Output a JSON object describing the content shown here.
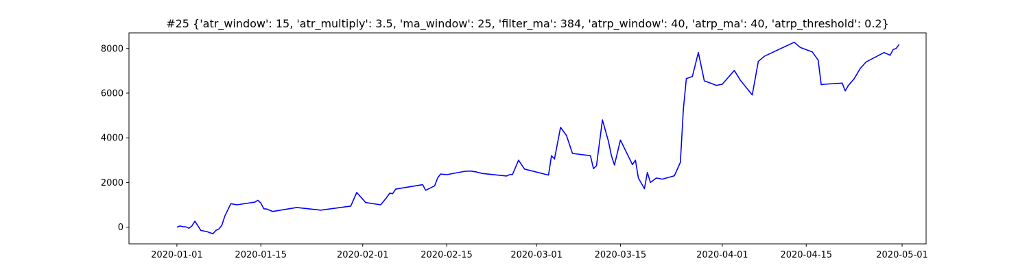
{
  "chart_data": {
    "type": "line",
    "title": "#25 {'atr_window': 15, 'atr_multiply': 3.5, 'ma_window': 25, 'filter_ma': 384, 'atrp_window': 40, 'atrp_ma': 40, 'atrp_threshold': 0.2}",
    "xlabel": "",
    "ylabel": "",
    "xlim": [
      "2019-12-24",
      "2020-05-05"
    ],
    "ylim": [
      -750,
      8700
    ],
    "x_ticks": [
      "2020-01-01",
      "2020-01-15",
      "2020-02-01",
      "2020-02-15",
      "2020-03-01",
      "2020-03-15",
      "2020-04-01",
      "2020-04-15",
      "2020-05-01"
    ],
    "y_ticks": [
      0,
      2000,
      4000,
      6000,
      8000
    ],
    "grid": false,
    "line_color": "#0000ff",
    "series": [
      {
        "x": [
          "2020-01-01",
          "2020-01-01T12",
          "2020-01-02",
          "2020-01-02T12",
          "2020-01-03",
          "2020-01-03T12",
          "2020-01-04",
          "2020-01-05",
          "2020-01-06",
          "2020-01-07",
          "2020-01-07T12",
          "2020-01-08",
          "2020-01-08T12",
          "2020-01-09",
          "2020-01-10",
          "2020-01-11",
          "2020-01-14",
          "2020-01-14T12",
          "2020-01-15",
          "2020-01-15T12",
          "2020-01-16",
          "2020-01-17",
          "2020-01-21",
          "2020-01-25",
          "2020-01-30",
          "2020-01-31",
          "2020-02-01",
          "2020-02-01T12",
          "2020-02-04",
          "2020-02-05",
          "2020-02-05T12",
          "2020-02-06",
          "2020-02-06T12",
          "2020-02-11",
          "2020-02-11T12",
          "2020-02-13",
          "2020-02-13T12",
          "2020-02-14",
          "2020-02-15",
          "2020-02-18",
          "2020-02-19",
          "2020-02-20",
          "2020-02-21",
          "2020-02-25",
          "2020-02-25T12",
          "2020-02-26",
          "2020-02-27",
          "2020-02-28",
          "2020-03-03",
          "2020-03-03T12",
          "2020-03-04",
          "2020-03-05",
          "2020-03-06",
          "2020-03-07",
          "2020-03-10",
          "2020-03-10T12",
          "2020-03-11",
          "2020-03-12",
          "2020-03-13",
          "2020-03-13T12",
          "2020-03-14",
          "2020-03-15",
          "2020-03-17",
          "2020-03-17T12",
          "2020-03-18",
          "2020-03-19",
          "2020-03-19T12",
          "2020-03-20",
          "2020-03-21",
          "2020-03-22",
          "2020-03-24",
          "2020-03-25",
          "2020-03-25T12",
          "2020-03-26",
          "2020-03-27",
          "2020-03-28",
          "2020-03-29",
          "2020-03-30",
          "2020-03-31",
          "2020-04-01",
          "2020-04-03",
          "2020-04-04",
          "2020-04-06",
          "2020-04-07",
          "2020-04-08",
          "2020-04-13",
          "2020-04-14",
          "2020-04-16",
          "2020-04-17",
          "2020-04-17T12",
          "2020-04-18",
          "2020-04-21",
          "2020-04-21T12",
          "2020-04-22",
          "2020-04-23",
          "2020-04-24",
          "2020-04-25",
          "2020-04-28",
          "2020-04-29",
          "2020-04-29T12",
          "2020-04-30",
          "2020-04-30T12"
        ],
        "y": [
          0,
          50,
          20,
          10,
          -50,
          50,
          270,
          -150,
          -200,
          -300,
          -150,
          -80,
          80,
          500,
          1050,
          1000,
          1120,
          1200,
          1080,
          820,
          810,
          700,
          880,
          760,
          940,
          1550,
          1250,
          1100,
          1000,
          1330,
          1520,
          1500,
          1700,
          1900,
          1650,
          1850,
          2200,
          2380,
          2350,
          2500,
          2510,
          2470,
          2400,
          2290,
          2350,
          2360,
          3000,
          2600,
          2330,
          3200,
          3050,
          4470,
          4100,
          3300,
          3200,
          2620,
          2750,
          4800,
          3850,
          3200,
          2780,
          3900,
          2800,
          3000,
          2200,
          1720,
          2450,
          2000,
          2200,
          2150,
          2300,
          2900,
          5300,
          6650,
          6750,
          7820,
          6550,
          6450,
          6350,
          6400,
          7020,
          6580,
          5920,
          7420,
          7650,
          8280,
          8050,
          7850,
          7480,
          6380,
          6400,
          6450,
          6100,
          6330,
          6650,
          7100,
          7400,
          7820,
          7700,
          7950,
          8000,
          8180
        ]
      }
    ]
  }
}
